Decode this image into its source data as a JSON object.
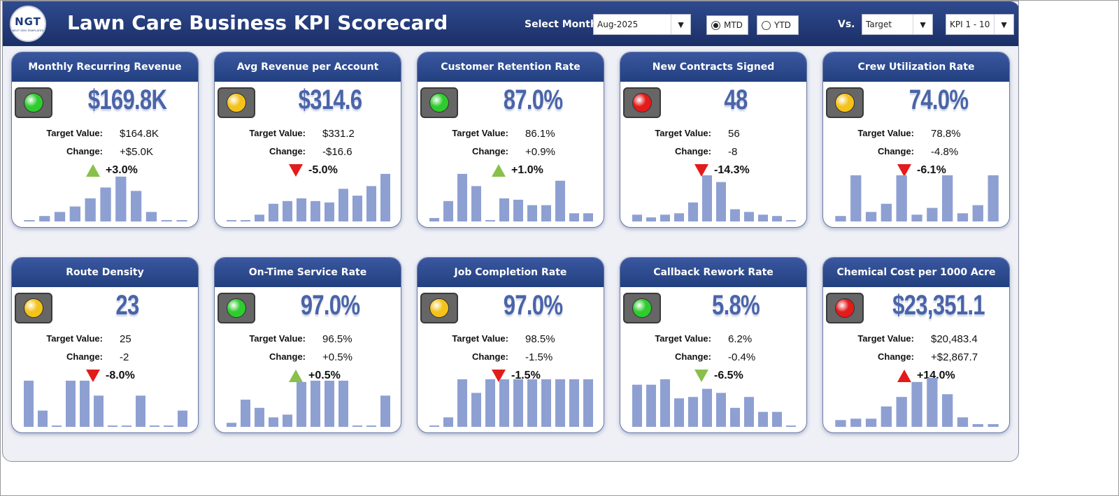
{
  "header": {
    "logo_text": "NGT",
    "logo_subtext": "NEXT GEN TEMPLATES",
    "title": "Lawn Care Business KPI Scorecard",
    "select_month_label": "Select Month",
    "month_value": "Aug-2025",
    "mtd_label": "MTD",
    "ytd_label": "YTD",
    "mtd_selected": true,
    "vs_label": "Vs.",
    "vs_value": "Target",
    "kpi_range_value": "KPI 1 - 10"
  },
  "kpis": [
    {
      "name": "Monthly Recurring Revenue",
      "value": "$169.8K",
      "target_label": "Target Value:",
      "target": "$164.8K",
      "change_label": "Change:",
      "change": "+$5.0K",
      "pct": "+3.0%",
      "direction": "up",
      "arrow_color": "#88c04a",
      "light": "#2ecc2e",
      "bars": [
        2,
        8,
        14,
        22,
        34,
        50,
        66,
        45,
        14,
        2,
        2
      ]
    },
    {
      "name": "Avg Revenue per Account",
      "value": "$314.6",
      "target_label": "Target Value:",
      "target": "$331.2",
      "change_label": "Change:",
      "change": "-$16.6",
      "pct": "-5.0%",
      "direction": "down",
      "arrow_color": "#e31b1b",
      "light": "#f5c21a",
      "bars": [
        2,
        2,
        10,
        26,
        30,
        34,
        30,
        28,
        48,
        38,
        52,
        70
      ]
    },
    {
      "name": "Customer Retention Rate",
      "value": "87.0%",
      "target_label": "Target Value:",
      "target": "86.1%",
      "change_label": "Change:",
      "change": "+0.9%",
      "pct": "+1.0%",
      "direction": "up",
      "arrow_color": "#88c04a",
      "light": "#2ecc2e",
      "bars": [
        5,
        30,
        70,
        52,
        2,
        34,
        32,
        24,
        24,
        60,
        12,
        12
      ]
    },
    {
      "name": "New Contracts Signed",
      "value": "48",
      "target_label": "Target Value:",
      "target": "56",
      "change_label": "Change:",
      "change": "-8",
      "pct": "-14.3%",
      "direction": "down",
      "arrow_color": "#e31b1b",
      "light": "#e31b1b",
      "bars": [
        10,
        6,
        10,
        12,
        28,
        68,
        58,
        18,
        14,
        10,
        8,
        2
      ]
    },
    {
      "name": "Crew Utilization Rate",
      "value": "74.0%",
      "target_label": "Target Value:",
      "target": "78.8%",
      "change_label": "Change:",
      "change": "-4.8%",
      "pct": "-6.1%",
      "direction": "down",
      "arrow_color": "#e31b1b",
      "light": "#f5c21a",
      "bars": [
        8,
        68,
        14,
        26,
        68,
        10,
        20,
        68,
        12,
        24,
        68
      ]
    },
    {
      "name": "Route Density",
      "value": "23",
      "target_label": "Target Value:",
      "target": "25",
      "change_label": "Change:",
      "change": "-2",
      "pct": "-8.0%",
      "direction": "down",
      "arrow_color": "#e31b1b",
      "light": "#f5c21a",
      "bars": [
        68,
        24,
        2,
        68,
        68,
        46,
        2,
        2,
        46,
        2,
        2,
        24
      ]
    },
    {
      "name": "On-Time Service Rate",
      "value": "97.0%",
      "target_label": "Target Value:",
      "target": "96.5%",
      "change_label": "Change:",
      "change": "+0.5%",
      "pct": "+0.5%",
      "direction": "up",
      "arrow_color": "#88c04a",
      "light": "#2ecc2e",
      "bars": [
        6,
        40,
        28,
        14,
        18,
        66,
        68,
        68,
        68,
        2,
        2,
        46
      ]
    },
    {
      "name": "Job Completion Rate",
      "value": "97.0%",
      "target_label": "Target Value:",
      "target": "98.5%",
      "change_label": "Change:",
      "change": "-1.5%",
      "pct": "-1.5%",
      "direction": "down",
      "arrow_color": "#e31b1b",
      "light": "#f5c21a",
      "bars": [
        2,
        14,
        70,
        50,
        70,
        70,
        70,
        70,
        70,
        70,
        70,
        70
      ]
    },
    {
      "name": "Callback Rework Rate",
      "value": "5.8%",
      "target_label": "Target Value:",
      "target": "6.2%",
      "change_label": "Change:",
      "change": "-0.4%",
      "pct": "-6.5%",
      "direction": "down",
      "arrow_color": "#88c04a",
      "light": "#2ecc2e",
      "bars": [
        62,
        62,
        70,
        42,
        44,
        56,
        50,
        28,
        44,
        22,
        22,
        2
      ]
    },
    {
      "name": "Chemical Cost per 1000 Acre",
      "value": "$23,351.1",
      "target_label": "Target Value:",
      "target": "$20,483.4",
      "change_label": "Change:",
      "change": "+$2,867.7",
      "pct": "+14.0%",
      "direction": "up",
      "arrow_color": "#e31b1b",
      "light": "#e31b1b",
      "bars": [
        10,
        12,
        12,
        30,
        44,
        66,
        72,
        48,
        14,
        4,
        4
      ]
    }
  ]
}
